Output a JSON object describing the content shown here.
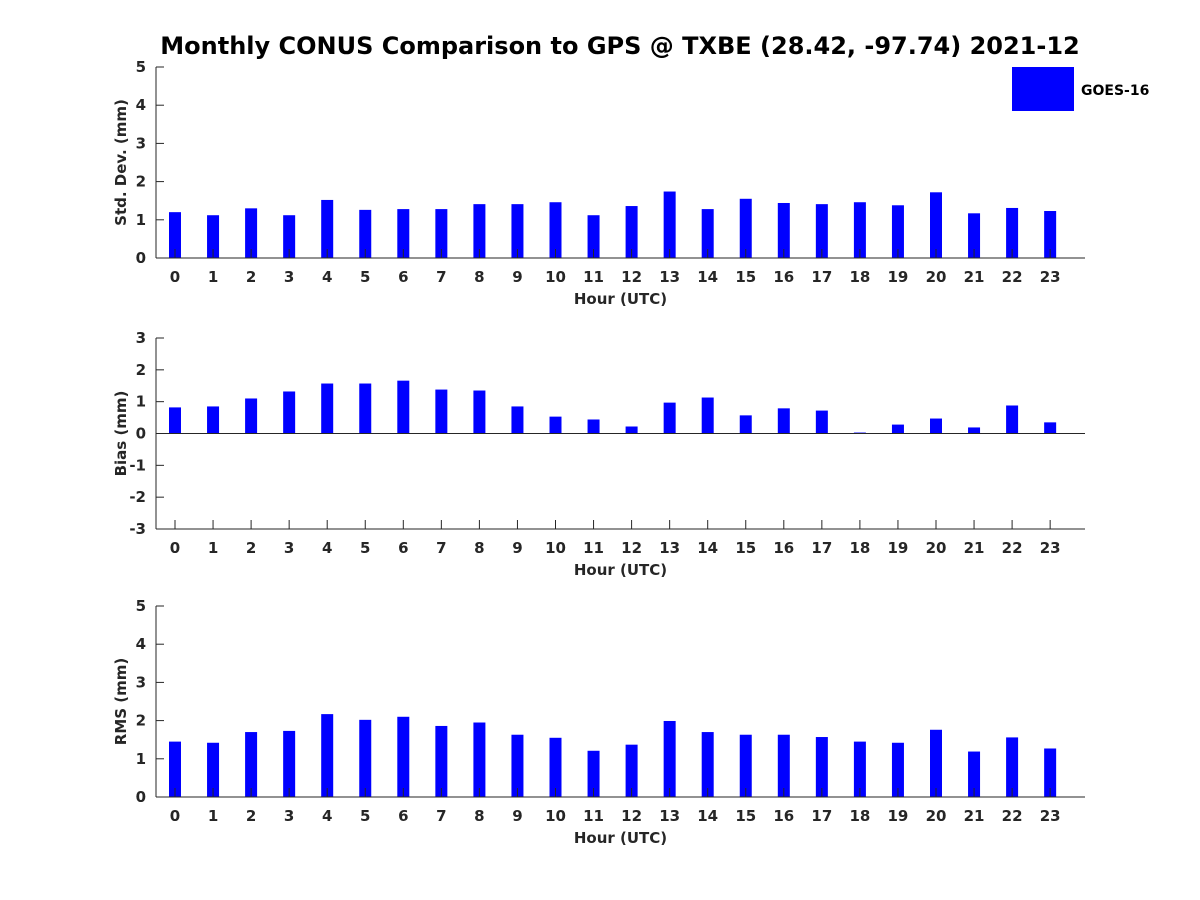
{
  "figure": {
    "title": "Monthly CONUS Comparison to GPS @ TXBE (28.42, -97.74) 2021-12",
    "legend": {
      "label": "GOES-16",
      "color": "#0000ff",
      "placement": "top-right"
    }
  },
  "chart_data": [
    {
      "type": "bar",
      "name": "std-dev",
      "ylabel": "Std. Dev. (mm)",
      "xlabel": "Hour (UTC)",
      "ylim": [
        0,
        5
      ],
      "yticks": [
        0,
        1,
        2,
        3,
        4,
        5
      ],
      "categories": [
        "0",
        "1",
        "2",
        "3",
        "4",
        "5",
        "6",
        "7",
        "8",
        "9",
        "10",
        "11",
        "12",
        "13",
        "14",
        "15",
        "16",
        "17",
        "18",
        "19",
        "20",
        "21",
        "22",
        "23"
      ],
      "series": [
        {
          "name": "GOES-16",
          "values": [
            1.2,
            1.12,
            1.3,
            1.12,
            1.52,
            1.26,
            1.28,
            1.28,
            1.41,
            1.41,
            1.46,
            1.12,
            1.36,
            1.74,
            1.28,
            1.55,
            1.44,
            1.41,
            1.46,
            1.38,
            1.72,
            1.17,
            1.31,
            1.23
          ]
        }
      ]
    },
    {
      "type": "bar",
      "name": "bias",
      "ylabel": "Bias (mm)",
      "xlabel": "Hour (UTC)",
      "ylim": [
        -3,
        3
      ],
      "yticks": [
        -3,
        -2,
        -1,
        0,
        1,
        2,
        3
      ],
      "categories": [
        "0",
        "1",
        "2",
        "3",
        "4",
        "5",
        "6",
        "7",
        "8",
        "9",
        "10",
        "11",
        "12",
        "13",
        "14",
        "15",
        "16",
        "17",
        "18",
        "19",
        "20",
        "21",
        "22",
        "23"
      ],
      "series": [
        {
          "name": "GOES-16",
          "values": [
            0.82,
            0.85,
            1.1,
            1.32,
            1.57,
            1.57,
            1.66,
            1.38,
            1.35,
            0.85,
            0.53,
            0.44,
            0.22,
            0.97,
            1.13,
            0.57,
            0.79,
            0.72,
            0.03,
            0.28,
            0.47,
            0.19,
            0.88,
            0.35
          ]
        }
      ]
    },
    {
      "type": "bar",
      "name": "rms",
      "ylabel": "RMS (mm)",
      "xlabel": "Hour (UTC)",
      "ylim": [
        0,
        5
      ],
      "yticks": [
        0,
        1,
        2,
        3,
        4,
        5
      ],
      "categories": [
        "0",
        "1",
        "2",
        "3",
        "4",
        "5",
        "6",
        "7",
        "8",
        "9",
        "10",
        "11",
        "12",
        "13",
        "14",
        "15",
        "16",
        "17",
        "18",
        "19",
        "20",
        "21",
        "22",
        "23"
      ],
      "series": [
        {
          "name": "GOES-16",
          "values": [
            1.45,
            1.42,
            1.7,
            1.73,
            2.17,
            2.02,
            2.1,
            1.86,
            1.95,
            1.63,
            1.55,
            1.21,
            1.37,
            1.99,
            1.7,
            1.63,
            1.63,
            1.57,
            1.45,
            1.42,
            1.76,
            1.19,
            1.56,
            1.27
          ]
        }
      ]
    }
  ]
}
